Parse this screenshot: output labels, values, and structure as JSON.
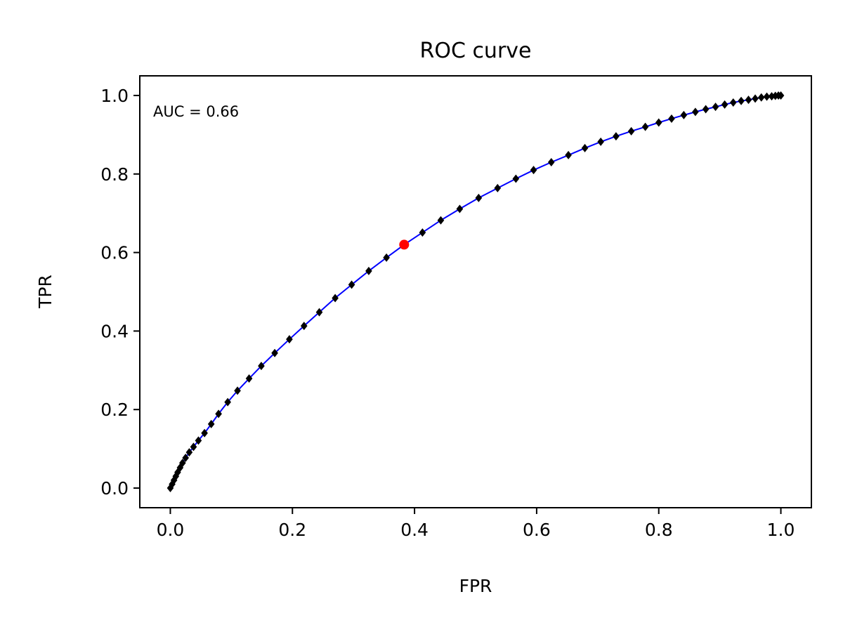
{
  "chart_data": {
    "type": "line",
    "title": "ROC curve",
    "xlabel": "FPR",
    "ylabel": "TPR",
    "xlim": [
      -0.05,
      1.05
    ],
    "ylim": [
      -0.05,
      1.05
    ],
    "xticks": [
      "0.0",
      "0.2",
      "0.4",
      "0.6",
      "0.8",
      "1.0"
    ],
    "yticks": [
      "0.0",
      "0.2",
      "0.4",
      "0.6",
      "0.8",
      "1.0"
    ],
    "grid": false,
    "annotation": "AUC = 0.66",
    "line_color": "#0000ff",
    "marker_color": "#000000",
    "highlight_color": "#ff0000",
    "series": [
      {
        "x": [
          0.0,
          0.003,
          0.006,
          0.009,
          0.012,
          0.016,
          0.02,
          0.025,
          0.031,
          0.038,
          0.046,
          0.056,
          0.067,
          0.079,
          0.094,
          0.11,
          0.129,
          0.149,
          0.171,
          0.195,
          0.219,
          0.244,
          0.27,
          0.297,
          0.325,
          0.354,
          0.383,
          0.413,
          0.443,
          0.474,
          0.505,
          0.536,
          0.566,
          0.595,
          0.624,
          0.652,
          0.679,
          0.705,
          0.73,
          0.755,
          0.778,
          0.8,
          0.821,
          0.841,
          0.86,
          0.877,
          0.893,
          0.908,
          0.922,
          0.935,
          0.947,
          0.958,
          0.968,
          0.977,
          0.985,
          0.991,
          0.996,
          1.0
        ],
        "y": [
          0.0,
          0.01,
          0.02,
          0.03,
          0.04,
          0.052,
          0.064,
          0.077,
          0.091,
          0.105,
          0.121,
          0.14,
          0.163,
          0.189,
          0.219,
          0.248,
          0.279,
          0.311,
          0.344,
          0.379,
          0.413,
          0.448,
          0.484,
          0.518,
          0.553,
          0.587,
          0.62,
          0.651,
          0.682,
          0.711,
          0.739,
          0.764,
          0.788,
          0.81,
          0.83,
          0.848,
          0.866,
          0.882,
          0.896,
          0.909,
          0.92,
          0.931,
          0.941,
          0.95,
          0.958,
          0.965,
          0.971,
          0.977,
          0.982,
          0.986,
          0.989,
          0.992,
          0.995,
          0.997,
          0.998,
          0.999,
          1.0,
          1.0
        ]
      }
    ],
    "highlight_point": {
      "x": 0.383,
      "y": 0.62
    }
  }
}
